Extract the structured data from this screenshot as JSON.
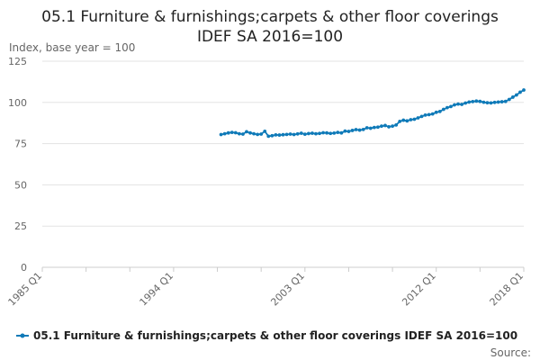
{
  "title_lines": [
    "05.1 Furniture & furnishings;carpets & other floor coverings",
    "IDEF SA 2016=100"
  ],
  "source": "Source:",
  "colors": {
    "series": "#0f7ab8",
    "grid": "#e3e3e3",
    "axis": "#cccccc"
  },
  "chart_data": {
    "type": "line",
    "title": "05.1 Furniture & furnishings;carpets & other floor coverings IDEF SA 2016=100",
    "xlabel": "",
    "ylabel": "Index, base year = 100",
    "ylim": [
      0,
      125
    ],
    "yticks": [
      0,
      25,
      50,
      75,
      100,
      125
    ],
    "xlim": [
      "1985 Q1",
      "2018 Q1"
    ],
    "xticks": [
      "1985 Q1",
      "1994 Q1",
      "2003 Q1",
      "2012 Q1",
      "2018 Q1"
    ],
    "grid": true,
    "legend": "bottom",
    "series": [
      {
        "name": "05.1 Furniture & furnishings;carpets & other floor coverings IDEF SA 2016=100",
        "x": [
          "1997 Q2",
          "1997 Q3",
          "1997 Q4",
          "1998 Q1",
          "1998 Q2",
          "1998 Q3",
          "1998 Q4",
          "1999 Q1",
          "1999 Q2",
          "1999 Q3",
          "1999 Q4",
          "2000 Q1",
          "2000 Q2",
          "2000 Q3",
          "2000 Q4",
          "2001 Q1",
          "2001 Q2",
          "2001 Q3",
          "2001 Q4",
          "2002 Q1",
          "2002 Q2",
          "2002 Q3",
          "2002 Q4",
          "2003 Q1",
          "2003 Q2",
          "2003 Q3",
          "2003 Q4",
          "2004 Q1",
          "2004 Q2",
          "2004 Q3",
          "2004 Q4",
          "2005 Q1",
          "2005 Q2",
          "2005 Q3",
          "2005 Q4",
          "2006 Q1",
          "2006 Q2",
          "2006 Q3",
          "2006 Q4",
          "2007 Q1",
          "2007 Q2",
          "2007 Q3",
          "2007 Q4",
          "2008 Q1",
          "2008 Q2",
          "2008 Q3",
          "2008 Q4",
          "2009 Q1",
          "2009 Q2",
          "2009 Q3",
          "2009 Q4",
          "2010 Q1",
          "2010 Q2",
          "2010 Q3",
          "2010 Q4",
          "2011 Q1",
          "2011 Q2",
          "2011 Q3",
          "2011 Q4",
          "2012 Q1",
          "2012 Q2",
          "2012 Q3",
          "2012 Q4",
          "2013 Q1",
          "2013 Q2",
          "2013 Q3",
          "2013 Q4",
          "2014 Q1",
          "2014 Q2",
          "2014 Q3",
          "2014 Q4",
          "2015 Q1",
          "2015 Q2",
          "2015 Q3",
          "2015 Q4",
          "2016 Q1",
          "2016 Q2",
          "2016 Q3",
          "2016 Q4",
          "2017 Q1",
          "2017 Q2",
          "2017 Q3",
          "2017 Q4",
          "2018 Q1"
        ],
        "values": [
          80.5,
          81,
          81.5,
          81.8,
          81.6,
          81,
          80.8,
          82.2,
          81.5,
          81,
          80.6,
          80.8,
          82.5,
          79.5,
          79.8,
          80.3,
          80.2,
          80.4,
          80.6,
          80.8,
          80.5,
          80.9,
          81.3,
          80.7,
          81.1,
          81.3,
          81,
          81.2,
          81.6,
          81.5,
          81.2,
          81.4,
          81.8,
          81.5,
          82.6,
          82.4,
          83,
          83.5,
          83.2,
          83.6,
          84.6,
          84.3,
          84.8,
          85,
          85.6,
          86,
          85.2,
          85.6,
          86.3,
          88.5,
          89.2,
          88.8,
          89.5,
          89.8,
          90.6,
          91.5,
          92.3,
          92.6,
          93,
          94,
          94.5,
          95.8,
          96.8,
          97.5,
          98.5,
          99,
          98.8,
          99.6,
          100.2,
          100.5,
          100.8,
          100.6,
          100.1,
          99.8,
          99.7,
          100,
          100.2,
          100.4,
          100.6,
          101.8,
          103.2,
          104.5,
          106.2,
          107.5
        ]
      }
    ]
  }
}
